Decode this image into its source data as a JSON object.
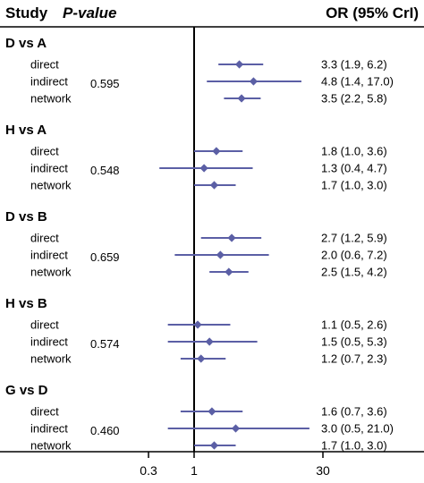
{
  "chart_data": {
    "type": "forest",
    "header": {
      "study": "Study",
      "pvalue": "P-value",
      "or": "OR (95% CrI)"
    },
    "x_scale": "log",
    "xlim": [
      0.2,
      45
    ],
    "x_ticks": [
      {
        "value": 0.3,
        "label": "0.3"
      },
      {
        "value": 1,
        "label": "1"
      },
      {
        "value": 30,
        "label": "30"
      }
    ],
    "reference_line": 1,
    "marker_color": "#5b5fa5",
    "groups": [
      {
        "label": "D vs A",
        "pvalue": "0.595",
        "rows": [
          {
            "type": "direct",
            "est": 3.3,
            "lo": 1.9,
            "hi": 6.2,
            "text": "3.3 (1.9, 6.2)"
          },
          {
            "type": "indirect",
            "est": 4.8,
            "lo": 1.4,
            "hi": 17.0,
            "text": "4.8 (1.4, 17.0)"
          },
          {
            "type": "network",
            "est": 3.5,
            "lo": 2.2,
            "hi": 5.8,
            "text": "3.5 (2.2, 5.8)"
          }
        ]
      },
      {
        "label": "H vs A",
        "pvalue": "0.548",
        "rows": [
          {
            "type": "direct",
            "est": 1.8,
            "lo": 1.0,
            "hi": 3.6,
            "text": "1.8 (1.0, 3.6)"
          },
          {
            "type": "indirect",
            "est": 1.3,
            "lo": 0.4,
            "hi": 4.7,
            "text": "1.3 (0.4, 4.7)"
          },
          {
            "type": "network",
            "est": 1.7,
            "lo": 1.0,
            "hi": 3.0,
            "text": "1.7 (1.0, 3.0)"
          }
        ]
      },
      {
        "label": "D vs B",
        "pvalue": "0.659",
        "rows": [
          {
            "type": "direct",
            "est": 2.7,
            "lo": 1.2,
            "hi": 5.9,
            "text": "2.7 (1.2, 5.9)"
          },
          {
            "type": "indirect",
            "est": 2.0,
            "lo": 0.6,
            "hi": 7.2,
            "text": "2.0 (0.6, 7.2)"
          },
          {
            "type": "network",
            "est": 2.5,
            "lo": 1.5,
            "hi": 4.2,
            "text": "2.5 (1.5, 4.2)"
          }
        ]
      },
      {
        "label": "H vs B",
        "pvalue": "0.574",
        "rows": [
          {
            "type": "direct",
            "est": 1.1,
            "lo": 0.5,
            "hi": 2.6,
            "text": "1.1 (0.5, 2.6)"
          },
          {
            "type": "indirect",
            "est": 1.5,
            "lo": 0.5,
            "hi": 5.3,
            "text": "1.5 (0.5, 5.3)"
          },
          {
            "type": "network",
            "est": 1.2,
            "lo": 0.7,
            "hi": 2.3,
            "text": "1.2 (0.7, 2.3)"
          }
        ]
      },
      {
        "label": "G vs D",
        "pvalue": "0.460",
        "rows": [
          {
            "type": "direct",
            "est": 1.6,
            "lo": 0.7,
            "hi": 3.6,
            "text": "1.6 (0.7, 3.6)"
          },
          {
            "type": "indirect",
            "est": 3.0,
            "lo": 0.5,
            "hi": 21.0,
            "text": "3.0 (0.5, 21.0)"
          },
          {
            "type": "network",
            "est": 1.7,
            "lo": 1.0,
            "hi": 3.0,
            "text": "1.7 (1.0, 3.0)"
          }
        ]
      }
    ]
  }
}
